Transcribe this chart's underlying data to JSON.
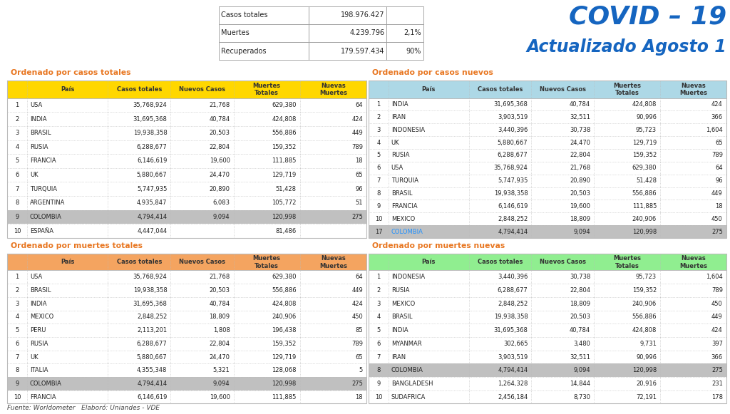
{
  "title_covid": "COVID – 19",
  "title_date": "Actualizado Agosto 1",
  "summary_labels": [
    "Casos totales",
    "Muertes",
    "Recuperados"
  ],
  "summary_values": [
    "198.976.427",
    "4.239.796",
    "179.597.434"
  ],
  "summary_extra": [
    "",
    "2,1%",
    "90%"
  ],
  "table1_title": "Ordenado por casos totales",
  "table1_hcolor": "#FFD700",
  "table1_rows": [
    [
      "1",
      "USA",
      "35,768,924",
      "21,768",
      "629,380",
      "64"
    ],
    [
      "2",
      "INDIA",
      "31,695,368",
      "40,784",
      "424,808",
      "424"
    ],
    [
      "3",
      "BRASIL",
      "19,938,358",
      "20,503",
      "556,886",
      "449"
    ],
    [
      "4",
      "RUSIA",
      "6,288,677",
      "22,804",
      "159,352",
      "789"
    ],
    [
      "5",
      "FRANCIA",
      "6,146,619",
      "19,600",
      "111,885",
      "18"
    ],
    [
      "6",
      "UK",
      "5,880,667",
      "24,470",
      "129,719",
      "65"
    ],
    [
      "7",
      "TURQUIA",
      "5,747,935",
      "20,890",
      "51,428",
      "96"
    ],
    [
      "8",
      "ARGENTINA",
      "4,935,847",
      "6,083",
      "105,772",
      "51"
    ],
    [
      "9",
      "COLOMBIA",
      "4,794,414",
      "9,094",
      "120,998",
      "275"
    ],
    [
      "10",
      "ESPAÑA",
      "4,447,044",
      "",
      "81,486",
      ""
    ]
  ],
  "table1_highlight": 8,
  "table2_title": "Ordenado por casos nuevos",
  "table2_hcolor": "#ADD8E6",
  "table2_rows": [
    [
      "1",
      "INDIA",
      "31,695,368",
      "40,784",
      "424,808",
      "424"
    ],
    [
      "2",
      "IRAN",
      "3,903,519",
      "32,511",
      "90,996",
      "366"
    ],
    [
      "3",
      "INDONESIA",
      "3,440,396",
      "30,738",
      "95,723",
      "1,604"
    ],
    [
      "4",
      "UK",
      "5,880,667",
      "24,470",
      "129,719",
      "65"
    ],
    [
      "5",
      "RUSIA",
      "6,288,677",
      "22,804",
      "159,352",
      "789"
    ],
    [
      "6",
      "USA",
      "35,768,924",
      "21,768",
      "629,380",
      "64"
    ],
    [
      "7",
      "TURQUIA",
      "5,747,935",
      "20,890",
      "51,428",
      "96"
    ],
    [
      "8",
      "BRASIL",
      "19,938,358",
      "20,503",
      "556,886",
      "449"
    ],
    [
      "9",
      "FRANCIA",
      "6,146,619",
      "19,600",
      "111,885",
      "18"
    ],
    [
      "10",
      "MEXICO",
      "2,848,252",
      "18,809",
      "240,906",
      "450"
    ],
    [
      "17",
      "COLOMBIA",
      "4,794,414",
      "9,094",
      "120,998",
      "275"
    ]
  ],
  "table2_highlight": 10,
  "table2_colombia_blue": true,
  "table3_title": "Ordenado por muertes totales",
  "table3_hcolor": "#F4A460",
  "table3_rows": [
    [
      "1",
      "USA",
      "35,768,924",
      "21,768",
      "629,380",
      "64"
    ],
    [
      "2",
      "BRASIL",
      "19,938,358",
      "20,503",
      "556,886",
      "449"
    ],
    [
      "3",
      "INDIA",
      "31,695,368",
      "40,784",
      "424,808",
      "424"
    ],
    [
      "4",
      "MEXICO",
      "2,848,252",
      "18,809",
      "240,906",
      "450"
    ],
    [
      "5",
      "PERU",
      "2,113,201",
      "1,808",
      "196,438",
      "85"
    ],
    [
      "6",
      "RUSIA",
      "6,288,677",
      "22,804",
      "159,352",
      "789"
    ],
    [
      "7",
      "UK",
      "5,880,667",
      "24,470",
      "129,719",
      "65"
    ],
    [
      "8",
      "ITALIA",
      "4,355,348",
      "5,321",
      "128,068",
      "5"
    ],
    [
      "9",
      "COLOMBIA",
      "4,794,414",
      "9,094",
      "120,998",
      "275"
    ],
    [
      "10",
      "FRANCIA",
      "6,146,619",
      "19,600",
      "111,885",
      "18"
    ]
  ],
  "table3_highlight": 8,
  "table4_title": "Ordenado por muertes nuevas",
  "table4_hcolor": "#90EE90",
  "table4_rows": [
    [
      "1",
      "INDONESIA",
      "3,440,396",
      "30,738",
      "95,723",
      "1,604"
    ],
    [
      "2",
      "RUSIA",
      "6,288,677",
      "22,804",
      "159,352",
      "789"
    ],
    [
      "3",
      "MEXICO",
      "2,848,252",
      "18,809",
      "240,906",
      "450"
    ],
    [
      "4",
      "BRASIL",
      "19,938,358",
      "20,503",
      "556,886",
      "449"
    ],
    [
      "5",
      "INDIA",
      "31,695,368",
      "40,784",
      "424,808",
      "424"
    ],
    [
      "6",
      "MYANMAR",
      "302,665",
      "3,480",
      "9,731",
      "397"
    ],
    [
      "7",
      "IRAN",
      "3,903,519",
      "32,511",
      "90,996",
      "366"
    ],
    [
      "8",
      "COLOMBIA",
      "4,794,414",
      "9,094",
      "120,998",
      "275"
    ],
    [
      "9",
      "BANGLADESH",
      "1,264,328",
      "14,844",
      "20,916",
      "231"
    ],
    [
      "10",
      "SUDAFRICA",
      "2,456,184",
      "8,730",
      "72,191",
      "178"
    ]
  ],
  "table4_highlight": 7,
  "col_header": [
    "País",
    "Casos totales",
    "Nuevos Casos",
    "Muertes\nTotales",
    "Nuevas\nMuertes"
  ],
  "footer": "Fuente: Worldometer   Elaboró: Uniandes - VDE",
  "bg_color": "#FFFFFF",
  "title_color": "#1565C0",
  "section_title_color": "#E87722",
  "header_text_color": "#333333",
  "row_text_color": "#222222",
  "highlight_color": "#C0C0C0",
  "divider_color": "#BBBBBB",
  "border_color": "#BBBBBB",
  "separator_color": "#1565C0",
  "colombia_link_color": "#1E90FF"
}
